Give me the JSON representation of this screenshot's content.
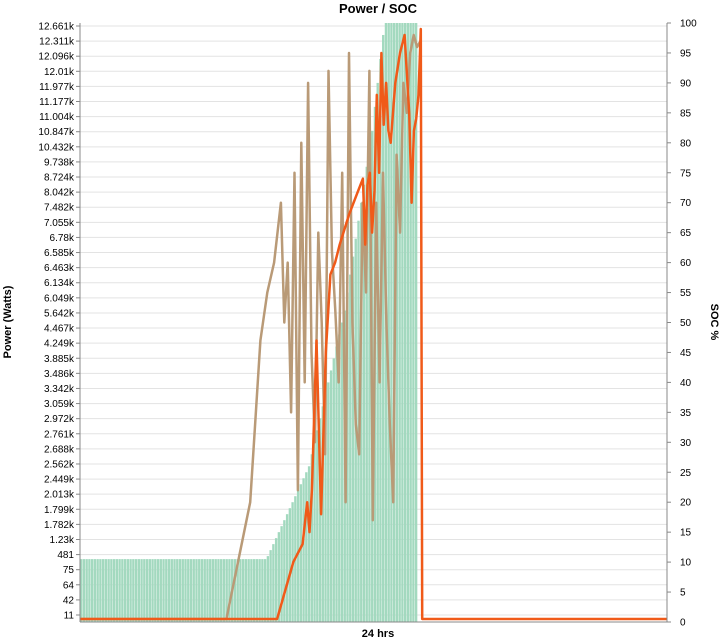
{
  "chart_data": {
    "type": "bar+line",
    "title": "Power / SOC",
    "xlabel": "24 hrs",
    "ylabel_left": "Power (Watts)",
    "ylabel_right": "SOC %",
    "left_ticks": [
      "11",
      "42",
      "64",
      "75",
      "481",
      "1.23k",
      "1.782k",
      "1.799k",
      "2.013k",
      "2.449k",
      "2.562k",
      "2.688k",
      "2.761k",
      "2.972k",
      "3.059k",
      "3.342k",
      "3.486k",
      "3.885k",
      "4.249k",
      "4.467k",
      "5.642k",
      "6.049k",
      "6.134k",
      "6.463k",
      "6.585k",
      "6.78k",
      "7.055k",
      "7.482k",
      "8.042k",
      "8.724k",
      "9.738k",
      "10.432k",
      "10.847k",
      "11.004k",
      "11.177k",
      "11.977k",
      "12.01k",
      "12.096k",
      "12.311k",
      "12.661k"
    ],
    "right_ticks": [
      0,
      5,
      10,
      15,
      20,
      25,
      30,
      35,
      40,
      45,
      50,
      55,
      60,
      65,
      70,
      75,
      80,
      85,
      90,
      95,
      100
    ],
    "grid": true,
    "bars_color": "#a3d9bf",
    "soc_line_color": "#f05a19",
    "power_line_color": "#b99a77",
    "bars_soc_equivalent": [
      10.5,
      10.5,
      10.5,
      10.5,
      10.5,
      10.5,
      10.5,
      10.5,
      10.5,
      10.5,
      10.5,
      10.5,
      10.5,
      10.5,
      10.5,
      10.5,
      10.5,
      10.5,
      10.5,
      10.5,
      10.5,
      10.5,
      10.5,
      10.5,
      10.5,
      10.5,
      10.5,
      10.5,
      10.5,
      10.5,
      10.5,
      10.5,
      10.5,
      10.5,
      10.5,
      10.5,
      10.5,
      10.5,
      10.5,
      10.5,
      10.5,
      10.5,
      10.5,
      10.5,
      10.5,
      10.5,
      10.5,
      10.5,
      10.5,
      10.5,
      10.5,
      10.5,
      10.5,
      10.5,
      10.5,
      10.5,
      10.5,
      10.5,
      10.5,
      10.5,
      10.5,
      10.5,
      10.5,
      10.5,
      10.5,
      10.5,
      10.5,
      10.5,
      11,
      12,
      13,
      14,
      15,
      16,
      17,
      18,
      19,
      20,
      21,
      22,
      23,
      24,
      25,
      26,
      28,
      30,
      32,
      34,
      36,
      38,
      40,
      42,
      44,
      46,
      48,
      50,
      52,
      55,
      58,
      61,
      64,
      67,
      70,
      73,
      76,
      79,
      82,
      86,
      90,
      94,
      98,
      100,
      100,
      100,
      100,
      100,
      100,
      100,
      100,
      100,
      100,
      100,
      100,
      0
    ],
    "soc_line": [
      [
        0,
        0.5
      ],
      [
        42.5,
        0.5
      ],
      [
        46,
        10
      ],
      [
        48,
        13
      ],
      [
        49,
        20
      ],
      [
        49.5,
        15
      ],
      [
        50,
        22
      ],
      [
        51,
        47
      ],
      [
        52,
        18
      ],
      [
        53,
        45
      ],
      [
        54,
        58
      ],
      [
        55,
        60
      ],
      [
        56,
        63
      ],
      [
        58,
        68
      ],
      [
        60,
        72
      ],
      [
        61,
        74
      ],
      [
        61.5,
        63
      ],
      [
        62,
        73
      ],
      [
        62.5,
        75
      ],
      [
        63,
        65
      ],
      [
        63.5,
        72
      ],
      [
        64,
        88
      ],
      [
        64.5,
        75
      ],
      [
        65,
        95
      ],
      [
        65.5,
        83
      ],
      [
        66,
        90
      ],
      [
        66.5,
        82
      ],
      [
        67,
        80
      ],
      [
        68,
        90
      ],
      [
        69,
        95
      ],
      [
        70,
        98
      ],
      [
        71,
        85
      ],
      [
        71.5,
        70
      ],
      [
        72,
        82
      ],
      [
        72.5,
        84
      ],
      [
        73,
        88
      ],
      [
        73.5,
        99
      ],
      [
        74,
        0.5
      ],
      [
        100,
        0.5
      ]
    ],
    "power_line": [
      [
        0,
        0.5
      ],
      [
        43,
        0.5
      ],
      [
        50,
        20
      ],
      [
        53,
        47
      ],
      [
        55,
        55
      ],
      [
        57,
        60
      ],
      [
        58,
        65
      ],
      [
        59,
        70
      ],
      [
        60,
        50
      ],
      [
        61,
        60
      ],
      [
        62,
        35
      ],
      [
        63,
        75
      ],
      [
        64,
        22
      ],
      [
        65,
        80
      ],
      [
        66,
        40
      ],
      [
        67,
        90
      ],
      [
        68,
        45
      ],
      [
        69,
        30
      ],
      [
        70,
        65
      ],
      [
        71,
        50
      ],
      [
        72,
        28
      ],
      [
        73,
        92
      ],
      [
        74,
        62
      ],
      [
        75,
        52
      ],
      [
        76,
        40
      ],
      [
        77,
        75
      ],
      [
        78,
        20
      ],
      [
        79,
        95
      ],
      [
        80,
        50
      ],
      [
        81,
        33
      ],
      [
        82,
        28
      ],
      [
        83,
        70
      ],
      [
        84,
        55
      ],
      [
        85,
        92
      ],
      [
        86,
        17
      ],
      [
        87,
        70
      ],
      [
        88,
        40
      ],
      [
        89,
        75
      ],
      [
        90,
        50
      ],
      [
        91,
        33
      ],
      [
        92,
        20
      ],
      [
        93,
        78
      ],
      [
        94,
        65
      ],
      [
        95,
        90
      ],
      [
        96,
        85
      ],
      [
        97,
        95
      ],
      [
        98,
        98
      ],
      [
        99,
        96
      ],
      [
        100,
        97
      ]
    ]
  }
}
